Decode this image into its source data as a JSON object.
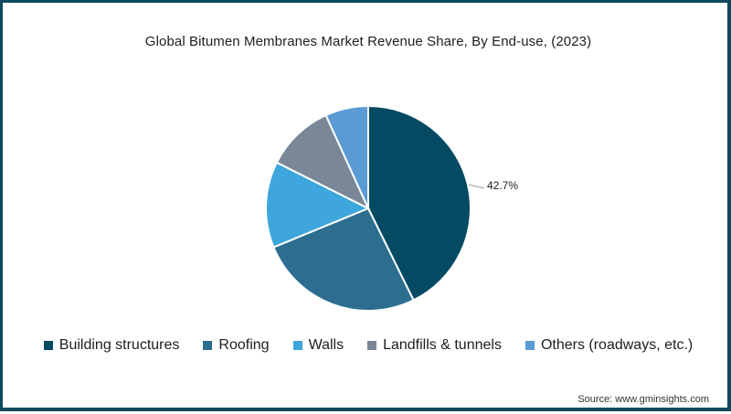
{
  "chart_data": {
    "type": "pie",
    "title": "Global Bitumen Membranes Market Revenue Share, By End-use, (2023)",
    "categories": [
      "Building structures",
      "Roofing",
      "Walls",
      "Landfills & tunnels",
      "Others (roadways, etc.)"
    ],
    "values": [
      42.7,
      26.1,
      13.6,
      10.8,
      6.8
    ],
    "colors": [
      "#054a63",
      "#2c6d90",
      "#3ea6dc",
      "#7a8797",
      "#5a9bd4"
    ],
    "labels_shown": [
      {
        "category": "Building structures",
        "text": "42.7%"
      }
    ],
    "start_angle_deg": 0,
    "direction": "clockwise",
    "legend_position": "bottom",
    "source": "Source: www.gminsights.com"
  },
  "title": "Global Bitumen Membranes Market Revenue Share, By End-use, (2023)",
  "data_label": "42.7%",
  "legend": [
    {
      "label": "Building structures",
      "color": "#054a63"
    },
    {
      "label": "Roofing",
      "color": "#2c6d90"
    },
    {
      "label": "Walls",
      "color": "#3ea6dc"
    },
    {
      "label": "Landfills & tunnels",
      "color": "#7a8797"
    },
    {
      "label": "Others (roadways, etc.)",
      "color": "#5a9bd4"
    }
  ],
  "source": "Source: www.gminsights.com"
}
